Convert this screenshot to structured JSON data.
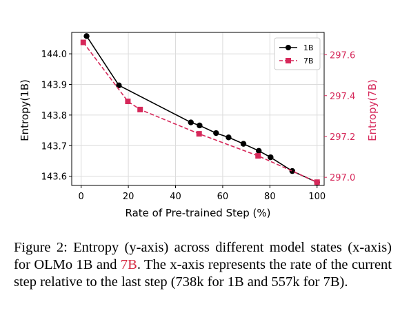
{
  "chart_data": {
    "type": "line",
    "xlabel": "Rate of Pre-trained Step (%)",
    "ylabel_left": "Entropy(1B)",
    "ylabel_right": "Entropy(7B)",
    "xlim": [
      -4,
      103
    ],
    "x_ticks": [
      0,
      20,
      40,
      60,
      80,
      100
    ],
    "ylim_left": [
      143.57,
      144.07
    ],
    "y_ticks_left": [
      143.6,
      143.7,
      143.8,
      143.9,
      144.0
    ],
    "ylim_right": [
      296.96,
      297.71
    ],
    "y_ticks_right": [
      297.0,
      297.2,
      297.4,
      297.6
    ],
    "grid": true,
    "legend_position": "top-right",
    "series": [
      {
        "name": "1B",
        "axis": "left",
        "color": "#000000",
        "marker": "circle",
        "line_style": "solid",
        "x": [
          2.3,
          16.0,
          46.5,
          50.2,
          57.2,
          62.5,
          68.8,
          75.3,
          80.3,
          89.5,
          100
        ],
        "y": [
          144.058,
          143.897,
          143.776,
          143.766,
          143.741,
          143.727,
          143.706,
          143.683,
          143.662,
          143.617,
          143.58
        ]
      },
      {
        "name": "7B",
        "axis": "right",
        "color": "#d6285a",
        "marker": "square",
        "line_style": "dashed",
        "x": [
          0.9,
          19.8,
          25.0,
          50.0,
          75.0,
          100
        ],
        "y": [
          297.661,
          297.372,
          297.332,
          297.213,
          297.105,
          296.976
        ]
      }
    ]
  },
  "caption": {
    "part1": "Figure 2: Entropy (y-axis) across different model states (x-axis) for OLMo 1B and ",
    "highlight": "7B",
    "part2": ". The x-axis represents the rate of the current step relative to the last step (738k for 1B and 557k for 7B)."
  }
}
